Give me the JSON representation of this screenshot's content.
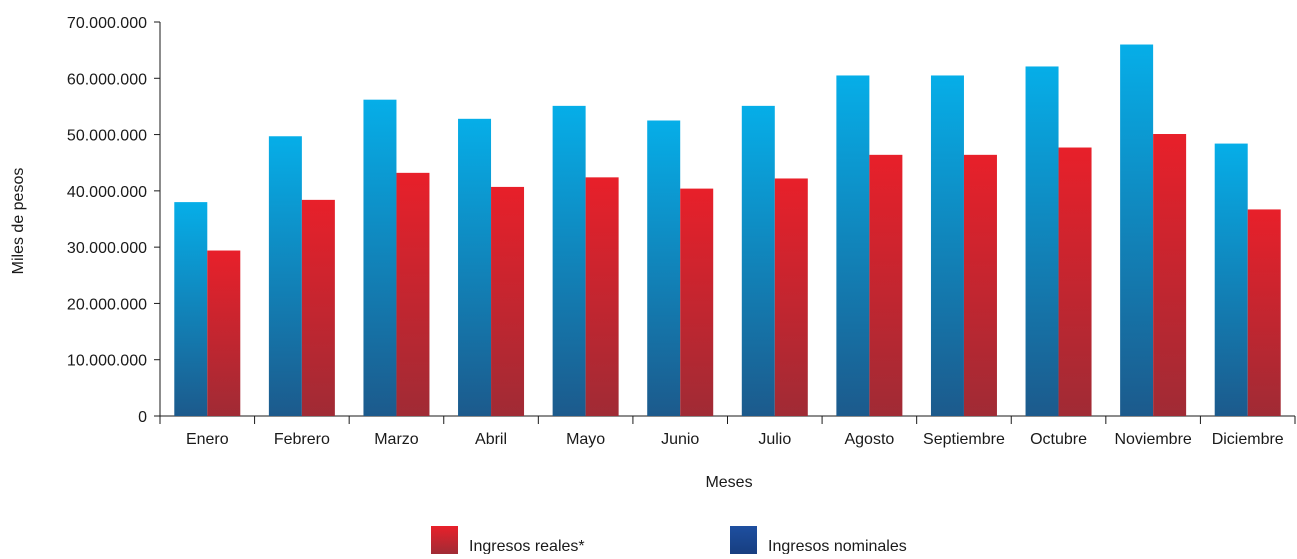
{
  "chart_data": {
    "type": "bar",
    "xlabel": "Meses",
    "ylabel": "Miles de pesos",
    "ylim": [
      0,
      70000000
    ],
    "yticks": [
      0,
      10000000,
      20000000,
      30000000,
      40000000,
      50000000,
      60000000,
      70000000
    ],
    "ytick_labels": [
      "0",
      "10.000.000",
      "20.000.000",
      "30.000.000",
      "40.000.000",
      "50.000.000",
      "60.000.000",
      "70.000.000"
    ],
    "categories": [
      "Enero",
      "Febrero",
      "Marzo",
      "Abril",
      "Mayo",
      "Junio",
      "Julio",
      "Agosto",
      "Septiembre",
      "Octubre",
      "Noviembre",
      "Diciembre"
    ],
    "series": [
      {
        "name": "Ingresos nominales",
        "color_top": "#06aee8",
        "color_bottom": "#1c5a8c",
        "values": [
          38000000,
          49700000,
          56200000,
          52800000,
          55100000,
          52500000,
          55100000,
          60500000,
          60500000,
          62100000,
          66000000,
          48400000
        ]
      },
      {
        "name": "Ingresos reales*",
        "color_top": "#e8202a",
        "color_bottom": "#a02b35",
        "values": [
          29400000,
          38400000,
          43200000,
          40700000,
          42400000,
          40400000,
          42200000,
          46400000,
          46400000,
          47700000,
          50100000,
          36700000
        ]
      }
    ],
    "grid": false,
    "legend_position": "bottom"
  },
  "legend": {
    "items": [
      {
        "label": "Ingresos reales*",
        "color_top": "#e8202a",
        "color_bottom": "#a02b35"
      },
      {
        "label": "Ingresos nominales",
        "color_top": "#1e4fa0",
        "color_bottom": "#173e80"
      }
    ]
  }
}
